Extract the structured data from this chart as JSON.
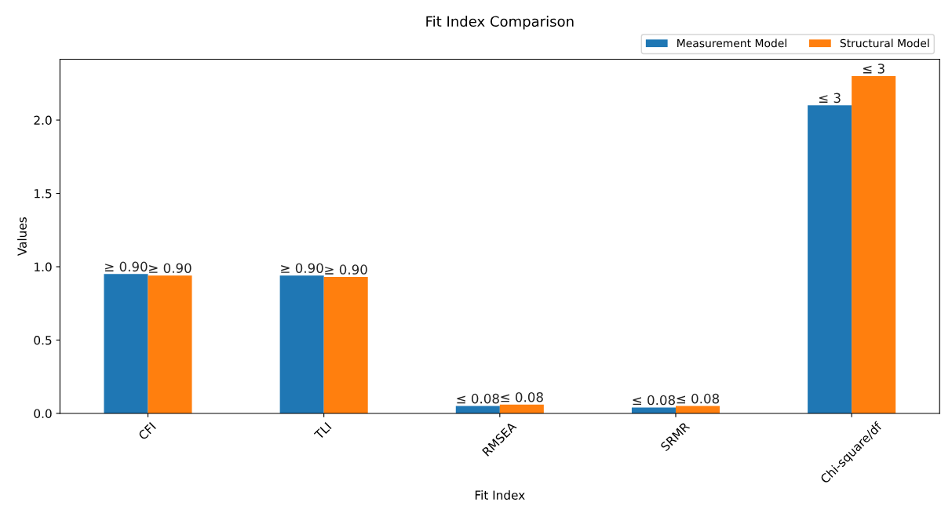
{
  "chart_data": {
    "type": "bar",
    "title": "Fit Index Comparison",
    "xlabel": "Fit Index",
    "ylabel": "Values",
    "categories": [
      "CFI",
      "TLI",
      "RMSEA",
      "SRMR",
      "Chi-square/df"
    ],
    "series": [
      {
        "name": "Measurement Model",
        "color": "#1f77b4",
        "values": [
          0.95,
          0.94,
          0.05,
          0.04,
          2.1
        ],
        "value_labels": [
          "≥ 0.90",
          "≥ 0.90",
          "≤ 0.08",
          "≤ 0.08",
          "≤ 3"
        ]
      },
      {
        "name": "Structural Model",
        "color": "#ff7f0e",
        "values": [
          0.94,
          0.93,
          0.06,
          0.05,
          2.3
        ],
        "value_labels": [
          "≥ 0.90",
          "≥ 0.90",
          "≤ 0.08",
          "≤ 0.08",
          "≤ 3"
        ]
      }
    ],
    "ylim": [
      0,
      2.415
    ],
    "yticks": [
      {
        "value": 0,
        "label": "0.0"
      },
      0.5,
      {
        "value": 1,
        "label": "1.0"
      },
      1.5,
      {
        "value": 2,
        "label": "2.0"
      }
    ],
    "legend": "top right",
    "grid": false
  }
}
